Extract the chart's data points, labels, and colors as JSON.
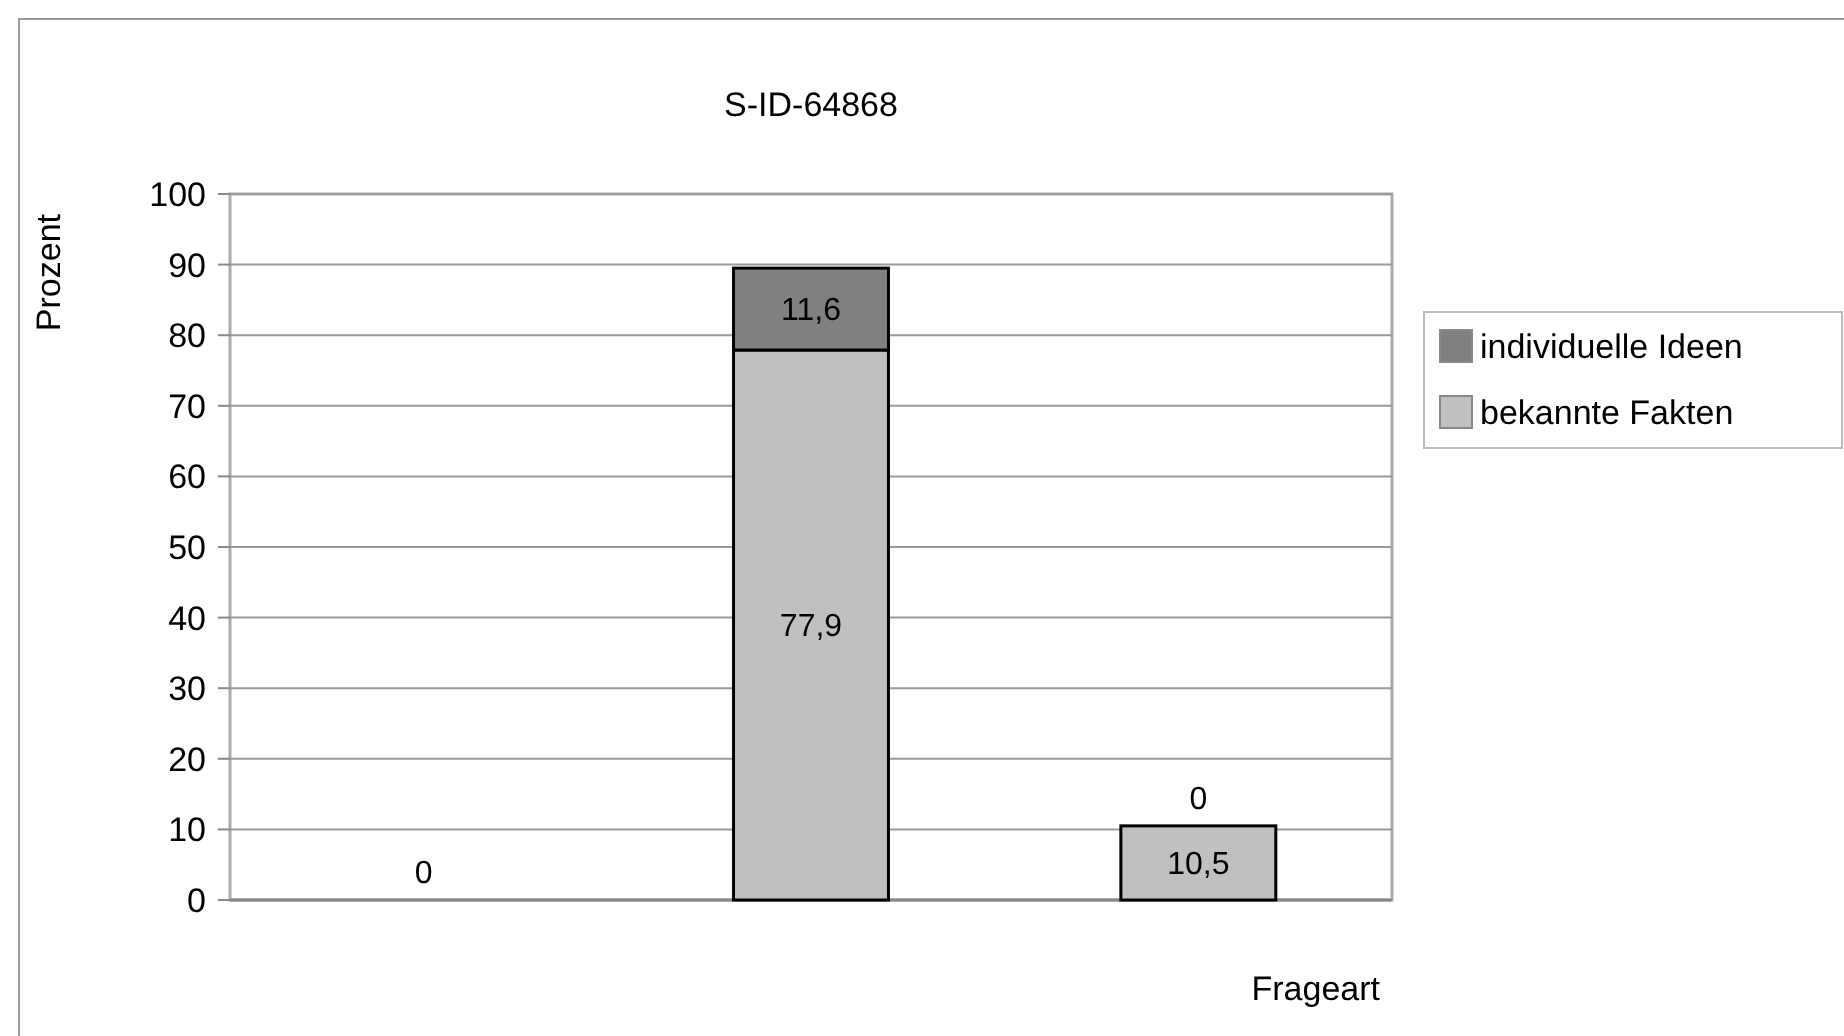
{
  "chart_data": {
    "type": "bar",
    "title": "S-ID-64868",
    "xlabel": "Frageart",
    "ylabel": "Prozent",
    "categories": [
      null,
      null,
      null
    ],
    "stacked": true,
    "ylim": [
      0,
      100
    ],
    "yticks": [
      0,
      10,
      20,
      30,
      40,
      50,
      60,
      70,
      80,
      90,
      100
    ],
    "grid": "y",
    "legend": "right",
    "series": [
      {
        "name": "bekannte Fakten",
        "color": "#c0c0c0",
        "values": [
          0,
          77.9,
          10.5
        ],
        "value_labels": [
          "0",
          "77,9",
          "10,5"
        ]
      },
      {
        "name": "individuelle Ideen",
        "color": "#808080",
        "values": [
          0,
          11.6,
          0
        ],
        "value_labels": [
          null,
          "11,6",
          "0"
        ]
      }
    ]
  }
}
